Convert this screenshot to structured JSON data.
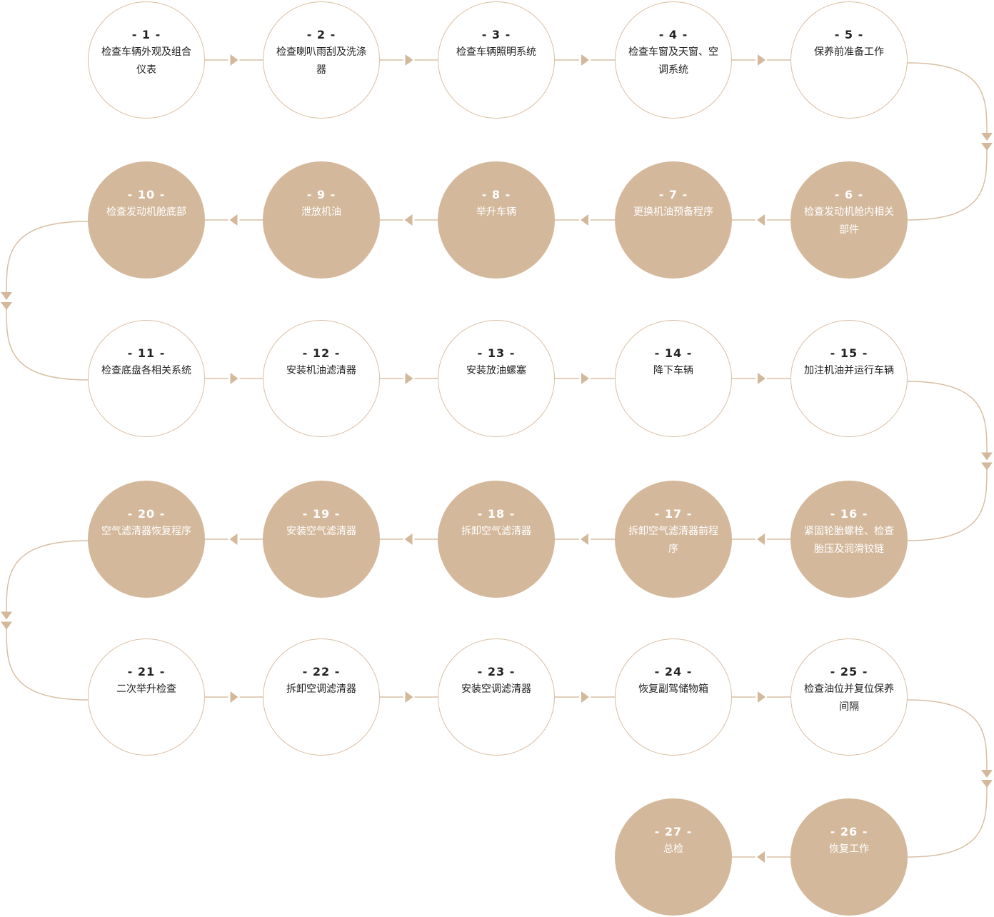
{
  "colors": {
    "accent": "#d4b89b",
    "outline": "#d8bfa5",
    "text_dark": "#222222",
    "text_light": "#ffffff"
  },
  "steps": [
    {
      "num": "- 1 -",
      "label": "检查车辆外观及组合仪表",
      "style": "outline"
    },
    {
      "num": "- 2 -",
      "label": "检查喇叭雨刮及洗涤器",
      "style": "outline"
    },
    {
      "num": "- 3 -",
      "label": "检查车辆照明系统",
      "style": "outline"
    },
    {
      "num": "- 4 -",
      "label": "检查车窗及天窗、空调系统",
      "style": "outline"
    },
    {
      "num": "- 5 -",
      "label": "保养前准备工作",
      "style": "outline"
    },
    {
      "num": "- 6 -",
      "label": "检查发动机舱内相关部件",
      "style": "filled"
    },
    {
      "num": "- 7 -",
      "label": "更换机油预备程序",
      "style": "filled"
    },
    {
      "num": "- 8 -",
      "label": "举升车辆",
      "style": "filled"
    },
    {
      "num": "- 9 -",
      "label": "泄放机油",
      "style": "filled"
    },
    {
      "num": "- 10 -",
      "label": "检查发动机舱底部",
      "style": "filled"
    },
    {
      "num": "- 11 -",
      "label": "检查底盘各相关系统",
      "style": "outline"
    },
    {
      "num": "- 12 -",
      "label": "安装机油滤清器",
      "style": "outline"
    },
    {
      "num": "- 13 -",
      "label": "安装放油螺塞",
      "style": "outline"
    },
    {
      "num": "- 14 -",
      "label": "降下车辆",
      "style": "outline"
    },
    {
      "num": "- 15 -",
      "label": "加注机油并运行车辆",
      "style": "outline"
    },
    {
      "num": "- 16 -",
      "label": "紧固轮胎螺栓、检查胎压及润滑铰链",
      "style": "filled"
    },
    {
      "num": "- 17 -",
      "label": "拆卸空气滤清器前程序",
      "style": "filled"
    },
    {
      "num": "- 18 -",
      "label": "拆卸空气滤清器",
      "style": "filled"
    },
    {
      "num": "- 19 -",
      "label": "安装空气滤清器",
      "style": "filled"
    },
    {
      "num": "- 20 -",
      "label": "空气滤清器恢复程序",
      "style": "filled"
    },
    {
      "num": "- 21 -",
      "label": "二次举升检查",
      "style": "outline"
    },
    {
      "num": "- 22 -",
      "label": "拆卸空调滤清器",
      "style": "outline"
    },
    {
      "num": "- 23 -",
      "label": "安装空调滤清器",
      "style": "outline"
    },
    {
      "num": "- 24 -",
      "label": "恢复副驾储物箱",
      "style": "outline"
    },
    {
      "num": "- 25 -",
      "label": "检查油位并复位保养间隔",
      "style": "outline"
    },
    {
      "num": "- 26 -",
      "label": "恢复工作",
      "style": "filled"
    },
    {
      "num": "- 27 -",
      "label": "总检",
      "style": "filled"
    }
  ]
}
